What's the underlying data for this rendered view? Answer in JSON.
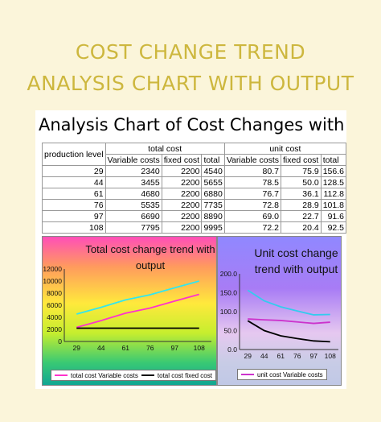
{
  "page": {
    "title_line1": "COST CHANGE TREND",
    "title_line2": "ANALYSIS CHART WITH OUTPUT"
  },
  "sheet": {
    "title": "Analysis Chart of Cost Changes with Production",
    "headers": {
      "production_level": "production level",
      "total_cost": "total cost",
      "unit_cost": "unit cost",
      "variable": "Variable costs",
      "fixed": "fixed cost",
      "total": "total"
    },
    "rows": [
      [
        "29",
        "2340",
        "2200",
        "4540",
        "80.7",
        "75.9",
        "156.6"
      ],
      [
        "44",
        "3455",
        "2200",
        "5655",
        "78.5",
        "50.0",
        "128.5"
      ],
      [
        "61",
        "4680",
        "2200",
        "6880",
        "76.7",
        "36.1",
        "112.8"
      ],
      [
        "76",
        "5535",
        "2200",
        "7735",
        "72.8",
        "28.9",
        "101.8"
      ],
      [
        "97",
        "6690",
        "2200",
        "8890",
        "69.0",
        "22.7",
        "91.6"
      ],
      [
        "108",
        "7795",
        "2200",
        "9995",
        "72.2",
        "20.4",
        "92.5"
      ]
    ]
  },
  "chart_data": [
    {
      "type": "line",
      "title": "Total cost change trend with output",
      "categories": [
        "29",
        "44",
        "61",
        "76",
        "97",
        "108"
      ],
      "ylim": [
        0,
        12000
      ],
      "yticks": [
        "0",
        "2000",
        "4000",
        "6000",
        "8000",
        "10000",
        "12000"
      ],
      "series": [
        {
          "name": "total cost Variable costs",
          "values": [
            2340,
            3455,
            4680,
            5535,
            6690,
            7795
          ],
          "color": "#ff33cc"
        },
        {
          "name": "total cost fixed cost",
          "values": [
            2200,
            2200,
            2200,
            2200,
            2200,
            2200
          ],
          "color": "#000000"
        },
        {
          "values": [
            4540,
            5655,
            6880,
            7735,
            8890,
            9995
          ],
          "color": "#33e6ee"
        }
      ],
      "legend": "bottom"
    },
    {
      "type": "line",
      "title": "Unit cost change trend with output",
      "categories": [
        "29",
        "44",
        "61",
        "76",
        "97",
        "108"
      ],
      "ylim": [
        0,
        200
      ],
      "yticks": [
        "0.0",
        "50.0",
        "100.0",
        "150.0",
        "200.0"
      ],
      "series": [
        {
          "name": "unit cost Variable costs",
          "values": [
            80.7,
            78.5,
            76.7,
            72.8,
            69.0,
            72.2
          ],
          "color": "#cc33cc"
        },
        {
          "values": [
            75.9,
            50.0,
            36.1,
            28.9,
            22.7,
            20.4
          ],
          "color": "#000000"
        },
        {
          "values": [
            156.6,
            128.5,
            112.8,
            101.8,
            91.6,
            92.5
          ],
          "color": "#33ccee"
        }
      ],
      "legend": "bottom"
    }
  ]
}
